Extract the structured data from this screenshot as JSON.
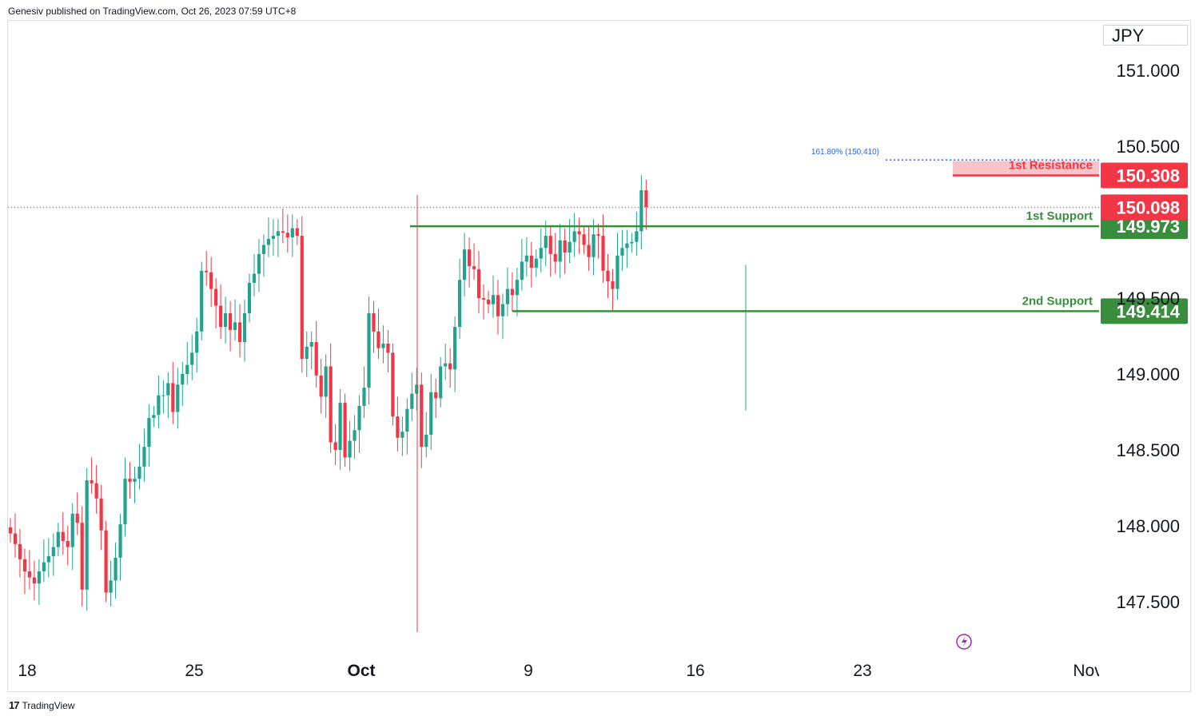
{
  "header": {
    "publisher": "Genesiv published on TradingView.com, Oct 26, 2023 07:59 UTC+8"
  },
  "footer": {
    "logo": "17",
    "brand": "TradingView"
  },
  "currency": "JPY",
  "colors": {
    "up": "#22a28f",
    "down": "#f23645",
    "support": "#388e3c",
    "resistance": "#f23645",
    "fib": "#2962ff",
    "price_line": "#f23645"
  },
  "chart_data": {
    "type": "candlestick",
    "symbol_currency": "JPY",
    "y_ticks": [
      "151.000",
      "150.500",
      "149.000",
      "148.500",
      "148.000",
      "147.500"
    ],
    "x_ticks": [
      "18",
      "25",
      "Oct",
      "9",
      "16",
      "23",
      "Nov"
    ],
    "levels": [
      {
        "label": "1st Resistance",
        "value": 150.308,
        "value_text": "150.308",
        "kind": "resistance"
      },
      {
        "label": "1st Support",
        "value": 149.973,
        "value_text": "149.973",
        "kind": "support"
      },
      {
        "label": "2nd Support",
        "value": 149.414,
        "value_text": "149.414",
        "kind": "support"
      }
    ],
    "last_price": {
      "value": 150.098,
      "value_text": "150.098"
    },
    "fib_extension": {
      "label": "161.80% (150.410)",
      "value": 150.41
    },
    "hidden_tick": "149.500",
    "close_series": [
      147.95,
      147.88,
      147.78,
      147.7,
      147.66,
      147.62,
      147.7,
      147.76,
      147.8,
      147.86,
      147.96,
      147.9,
      147.86,
      148.08,
      148.02,
      147.58,
      148.3,
      148.28,
      148.18,
      147.97,
      147.56,
      147.64,
      147.79,
      148.01,
      148.31,
      148.29,
      148.31,
      148.39,
      148.52,
      148.71,
      148.73,
      148.86,
      148.86,
      148.94,
      148.75,
      148.93,
      149.0,
      149.06,
      149.14,
      149.28,
      149.68,
      149.67,
      149.56,
      149.45,
      149.31,
      149.4,
      149.29,
      149.34,
      149.21,
      149.4,
      149.6,
      149.66,
      149.79,
      149.85,
      149.89,
      149.91,
      149.94,
      149.93,
      149.9,
      149.96,
      149.91,
      149.1,
      149.18,
      149.21,
      148.99,
      148.85,
      149.05,
      148.55,
      148.5,
      148.81,
      148.45,
      148.56,
      148.63,
      148.79,
      148.91,
      149.4,
      149.28,
      149.17,
      149.2,
      149.14,
      148.72,
      148.58,
      148.62,
      148.77,
      148.87,
      148.93,
      148.52,
      148.6,
      148.88,
      148.84,
      149.05,
      149.07,
      149.03,
      149.31,
      149.62,
      149.82,
      149.71,
      149.69,
      149.5,
      149.49,
      149.46,
      149.52,
      149.38,
      149.46,
      149.56,
      149.52,
      149.62,
      149.74,
      149.78,
      149.7,
      149.76,
      149.83,
      149.91,
      149.79,
      149.74,
      149.88,
      149.8,
      149.87,
      149.94,
      149.92,
      149.85,
      149.77,
      149.92,
      149.91,
      149.68,
      149.61,
      149.56,
      149.78,
      149.83,
      149.86,
      149.87,
      149.94,
      150.21,
      150.1
    ]
  }
}
